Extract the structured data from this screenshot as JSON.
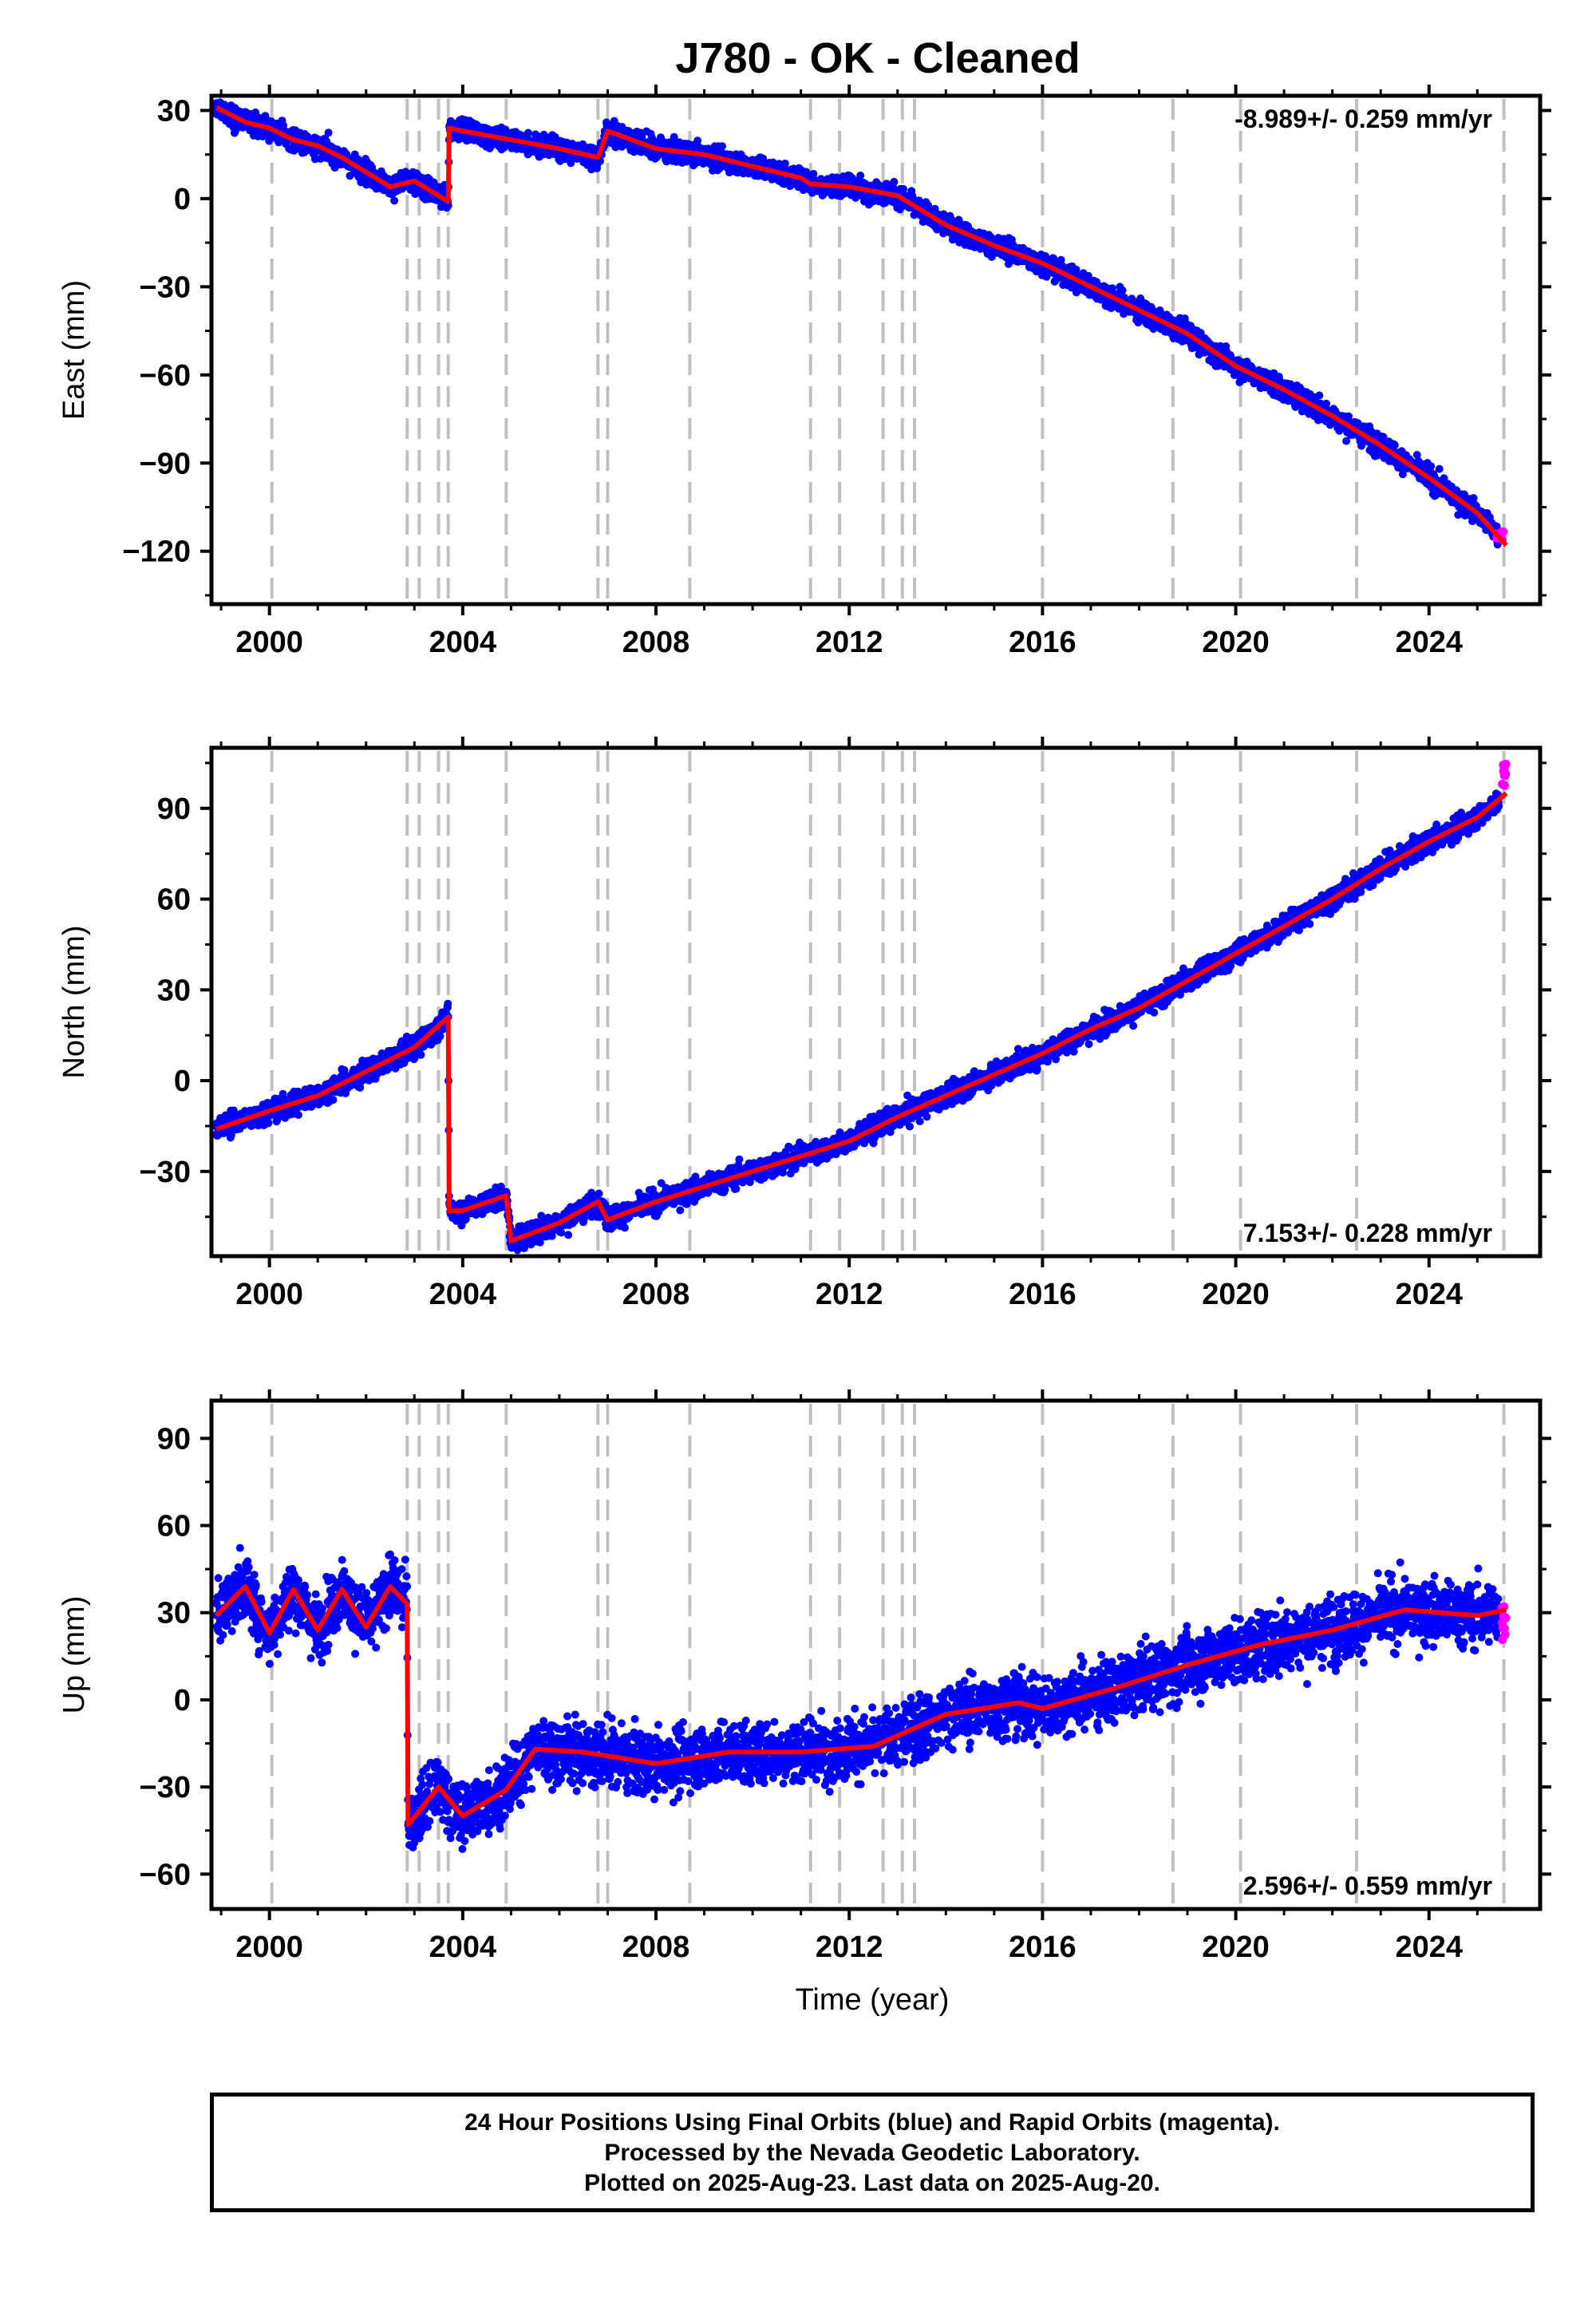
{
  "title": "J780  - OK - Cleaned",
  "x_axis": {
    "label": "Time (year)",
    "range": [
      1998.8,
      2026.3
    ],
    "ticks": [
      2000,
      2004,
      2008,
      2012,
      2016,
      2020,
      2024
    ],
    "tick_labels": [
      "2000",
      "2004",
      "2008",
      "2012",
      "2016",
      "2020",
      "2024"
    ]
  },
  "colors": {
    "final_orbits": "#0000ff",
    "rapid_orbits": "#ff00ff",
    "model": "#ff0000",
    "event_lines": "#c0c0c0"
  },
  "event_lines": [
    2000.05,
    2002.85,
    2003.1,
    2003.5,
    2003.7,
    2004.9,
    2006.8,
    2007.0,
    2008.7,
    2011.2,
    2011.8,
    2012.7,
    2013.1,
    2013.35,
    2016.0,
    2018.7,
    2020.1,
    2022.5,
    2025.55
  ],
  "caption": {
    "line1": "24 Hour Positions Using Final Orbits (blue) and Rapid Orbits (magenta).",
    "line2": "Processed by the Nevada Geodetic Laboratory.",
    "line3": "Plotted on 2025-Aug-23. Last data on 2025-Aug-20."
  },
  "chart_data": [
    {
      "type": "scatter",
      "component": "east",
      "ylabel": "East (mm)",
      "ylim": [
        -138,
        35
      ],
      "yticks": [
        30,
        0,
        -30,
        -60,
        -90,
        -120
      ],
      "ytick_labels": [
        "30",
        "0",
        "−30",
        "−60",
        "−90",
        "−120"
      ],
      "rate_label": "-8.989+/- 0.259 mm/yr",
      "rate_position": "top-right",
      "model_line": {
        "x": [
          1998.9,
          1999.5,
          2000.0,
          2000.5,
          2001.0,
          2001.5,
          2002.0,
          2002.5,
          2003.0,
          2003.5,
          2003.7,
          2003.72,
          2004.0,
          2005.0,
          2006.0,
          2006.8,
          2007.0,
          2008.0,
          2009.0,
          2010.0,
          2011.0,
          2011.2,
          2012.0,
          2013.0,
          2014.0,
          2015.0,
          2016.0,
          2017.0,
          2018.0,
          2019.0,
          2020.0,
          2021.0,
          2022.0,
          2023.0,
          2024.0,
          2025.0,
          2025.6
        ],
        "y": [
          31,
          26,
          24,
          20,
          18,
          14,
          9,
          4,
          6,
          1,
          -1,
          24,
          23,
          20,
          17,
          14,
          23,
          17,
          15,
          11,
          7,
          5,
          4,
          1,
          -9,
          -16,
          -22,
          -30,
          -38,
          -46,
          -57,
          -65,
          -74,
          -84,
          -95,
          -107,
          -118
        ]
      },
      "final_orbits_x": [
        1998.9,
        2003.72
      ],
      "final_orbits_scatter_mm": 3,
      "rapid_orbits": {
        "x": [
          2025.4,
          2025.6
        ],
        "y": [
          -116,
          -113
        ]
      }
    },
    {
      "type": "scatter",
      "component": "north",
      "ylabel": "North (mm)",
      "ylim": [
        -58,
        110
      ],
      "yticks": [
        90,
        60,
        30,
        0,
        -30
      ],
      "ytick_labels": [
        "90",
        "60",
        "30",
        "0",
        "−30"
      ],
      "rate_label": "7.153+/- 0.228 mm/yr",
      "rate_position": "bottom-right",
      "model_line": {
        "x": [
          1998.9,
          2000.0,
          2001.0,
          2002.0,
          2003.0,
          2003.7,
          2003.72,
          2004.0,
          2004.9,
          2005.0,
          2006.0,
          2006.8,
          2007.0,
          2008.0,
          2009.0,
          2010.0,
          2011.0,
          2012.0,
          2013.0,
          2014.0,
          2015.0,
          2016.0,
          2017.0,
          2018.0,
          2019.0,
          2020.0,
          2021.0,
          2022.0,
          2023.0,
          2024.0,
          2025.0,
          2025.6
        ],
        "y": [
          -16,
          -10,
          -5,
          3,
          11,
          21,
          -43,
          -43,
          -38,
          -53,
          -47,
          -40,
          -46,
          -40,
          -35,
          -30,
          -25,
          -20,
          -12,
          -5,
          2,
          9,
          17,
          24,
          33,
          42,
          51,
          60,
          70,
          79,
          87,
          95
        ]
      },
      "final_orbits_scatter_mm": 3,
      "rapid_orbits": {
        "x": [
          2025.5,
          2025.6
        ],
        "y": [
          95,
          105
        ]
      }
    },
    {
      "type": "scatter",
      "component": "up",
      "ylabel": "Up (mm)",
      "ylim": [
        -72,
        103
      ],
      "yticks": [
        90,
        60,
        30,
        0,
        -30,
        -60
      ],
      "ytick_labels": [
        "90",
        "60",
        "30",
        "0",
        "−30",
        "−60"
      ],
      "rate_label": "2.596+/- 0.559 mm/yr",
      "rate_position": "bottom-right",
      "model_line": {
        "x": [
          1998.9,
          1999.5,
          2000.0,
          2000.5,
          2001.0,
          2001.5,
          2002.0,
          2002.5,
          2002.85,
          2002.87,
          2003.5,
          2004.0,
          2004.9,
          2005.5,
          2006.5,
          2008.0,
          2009.5,
          2011.0,
          2012.5,
          2014.0,
          2015.5,
          2016.0,
          2017.5,
          2019.0,
          2020.5,
          2022.0,
          2023.5,
          2025.0,
          2025.6
        ],
        "y": [
          29,
          39,
          23,
          38,
          24,
          38,
          25,
          39,
          33,
          -43,
          -30,
          -40,
          -31,
          -17,
          -18,
          -22,
          -18,
          -18,
          -16,
          -5,
          -1,
          -3,
          4,
          12,
          19,
          24,
          31,
          29,
          31
        ]
      },
      "final_orbits_scatter_mm": 9,
      "rapid_orbits": {
        "x": [
          2025.5,
          2025.6
        ],
        "y": [
          15,
          35
        ]
      }
    }
  ]
}
